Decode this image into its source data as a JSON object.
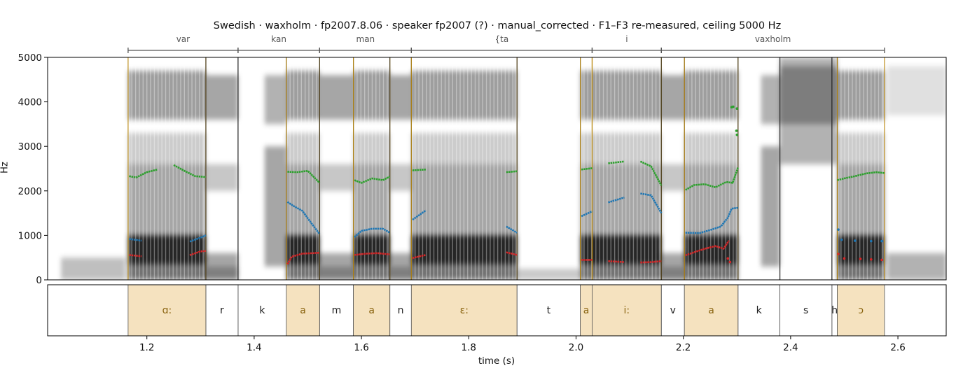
{
  "chart_data": {
    "type": "spectrogram",
    "title": "Swedish · waxholm · fp2007.8.06 · speaker fp2007 (?) · manual_corrected · F1–F3 re-measured, ceiling 5000 Hz",
    "xlabel": "time (s)",
    "ylabel": "Hz",
    "xlim": [
      1.015,
      2.69
    ],
    "ylim": [
      0,
      5000
    ],
    "xticks": [
      "1.2",
      "1.4",
      "1.6",
      "1.8",
      "2.0",
      "2.2",
      "2.4",
      "2.6"
    ],
    "yticks": [
      "0",
      "1000",
      "2000",
      "3000",
      "4000",
      "5000"
    ],
    "words": [
      {
        "label": "var",
        "start": 1.165,
        "end": 1.37
      },
      {
        "label": "kan",
        "start": 1.37,
        "end": 1.522
      },
      {
        "label": "man",
        "start": 1.522,
        "end": 1.693
      },
      {
        "label": "{ta",
        "start": 1.693,
        "end": 2.03
      },
      {
        "label": "i",
        "start": 2.03,
        "end": 2.159
      },
      {
        "label": "vaxholm",
        "start": 2.159,
        "end": 2.575
      }
    ],
    "segments": [
      {
        "label": "ɑ:",
        "start": 1.165,
        "end": 1.31,
        "vowel": true
      },
      {
        "label": "r",
        "start": 1.31,
        "end": 1.37,
        "vowel": false
      },
      {
        "label": "k",
        "start": 1.37,
        "end": 1.46,
        "vowel": false
      },
      {
        "label": "a",
        "start": 1.46,
        "end": 1.522,
        "vowel": true
      },
      {
        "label": "m",
        "start": 1.522,
        "end": 1.585,
        "vowel": false
      },
      {
        "label": "a",
        "start": 1.585,
        "end": 1.653,
        "vowel": true
      },
      {
        "label": "n",
        "start": 1.653,
        "end": 1.693,
        "vowel": false
      },
      {
        "label": "ɛ:",
        "start": 1.693,
        "end": 1.89,
        "vowel": true
      },
      {
        "label": "t",
        "start": 1.89,
        "end": 2.008,
        "vowel": false
      },
      {
        "label": "a",
        "start": 2.008,
        "end": 2.03,
        "vowel": true
      },
      {
        "label": "i:",
        "start": 2.03,
        "end": 2.159,
        "vowel": true
      },
      {
        "label": "v",
        "start": 2.159,
        "end": 2.202,
        "vowel": false
      },
      {
        "label": "a",
        "start": 2.202,
        "end": 2.302,
        "vowel": true
      },
      {
        "label": "k",
        "start": 2.302,
        "end": 2.38,
        "vowel": false
      },
      {
        "label": "s",
        "start": 2.38,
        "end": 2.477,
        "vowel": false
      },
      {
        "label": "h",
        "start": 2.477,
        "end": 2.487,
        "vowel": false
      },
      {
        "label": "ɔ",
        "start": 2.487,
        "end": 2.575,
        "vowel": true
      }
    ],
    "formants": [
      {
        "name": "F1",
        "color": "#d62728",
        "points": [
          [
            1.167,
            560
          ],
          [
            1.19,
            530
          ],
          [
            1.22,
            540
          ],
          [
            1.25,
            535
          ],
          [
            1.28,
            555
          ],
          [
            1.3,
            640
          ],
          [
            1.31,
            650
          ],
          [
            1.462,
            350
          ],
          [
            1.47,
            520
          ],
          [
            1.49,
            590
          ],
          [
            1.51,
            600
          ],
          [
            1.522,
            610
          ],
          [
            1.587,
            560
          ],
          [
            1.61,
            590
          ],
          [
            1.63,
            600
          ],
          [
            1.653,
            570
          ],
          [
            1.695,
            490
          ],
          [
            1.72,
            560
          ],
          [
            1.75,
            600
          ],
          [
            1.78,
            620
          ],
          [
            1.81,
            640
          ],
          [
            1.84,
            650
          ],
          [
            1.87,
            620
          ],
          [
            1.89,
            560
          ],
          [
            2.01,
            450
          ],
          [
            2.03,
            450
          ],
          [
            2.06,
            420
          ],
          [
            2.09,
            400
          ],
          [
            2.12,
            390
          ],
          [
            2.14,
            400
          ],
          [
            2.159,
            420
          ],
          [
            2.204,
            550
          ],
          [
            2.22,
            620
          ],
          [
            2.24,
            700
          ],
          [
            2.26,
            760
          ],
          [
            2.275,
            700
          ],
          [
            2.285,
            880
          ]
        ]
      },
      {
        "name": "F2",
        "color": "#1f77b4",
        "points": [
          [
            1.167,
            920
          ],
          [
            1.19,
            880
          ],
          [
            1.22,
            830
          ],
          [
            1.25,
            820
          ],
          [
            1.28,
            860
          ],
          [
            1.3,
            950
          ],
          [
            1.31,
            1000
          ],
          [
            1.462,
            1750
          ],
          [
            1.475,
            1650
          ],
          [
            1.49,
            1550
          ],
          [
            1.505,
            1300
          ],
          [
            1.522,
            1030
          ],
          [
            1.587,
            960
          ],
          [
            1.6,
            1100
          ],
          [
            1.62,
            1150
          ],
          [
            1.64,
            1150
          ],
          [
            1.653,
            1060
          ],
          [
            1.695,
            1350
          ],
          [
            1.72,
            1560
          ],
          [
            1.75,
            1700
          ],
          [
            1.78,
            1740
          ],
          [
            1.81,
            1720
          ],
          [
            1.84,
            1620
          ],
          [
            1.87,
            1200
          ],
          [
            1.89,
            1060
          ],
          [
            2.01,
            1430
          ],
          [
            2.03,
            1540
          ],
          [
            2.06,
            1740
          ],
          [
            2.09,
            1850
          ],
          [
            2.12,
            1940
          ],
          [
            2.14,
            1900
          ],
          [
            2.159,
            1500
          ],
          [
            2.204,
            1060
          ],
          [
            2.23,
            1050
          ],
          [
            2.25,
            1120
          ],
          [
            2.27,
            1200
          ],
          [
            2.283,
            1400
          ],
          [
            2.29,
            1600
          ],
          [
            2.302,
            1620
          ]
        ]
      },
      {
        "name": "F3",
        "color": "#2ca02c",
        "points": [
          [
            1.167,
            2330
          ],
          [
            1.18,
            2300
          ],
          [
            1.2,
            2420
          ],
          [
            1.22,
            2480
          ],
          [
            1.25,
            2580
          ],
          [
            1.27,
            2450
          ],
          [
            1.29,
            2330
          ],
          [
            1.31,
            2310
          ],
          [
            1.462,
            2430
          ],
          [
            1.48,
            2420
          ],
          [
            1.5,
            2450
          ],
          [
            1.522,
            2180
          ],
          [
            1.587,
            2240
          ],
          [
            1.6,
            2180
          ],
          [
            1.62,
            2280
          ],
          [
            1.64,
            2240
          ],
          [
            1.653,
            2320
          ],
          [
            1.695,
            2460
          ],
          [
            1.72,
            2480
          ],
          [
            1.75,
            2420
          ],
          [
            1.78,
            2400
          ],
          [
            1.81,
            2320
          ],
          [
            1.84,
            2330
          ],
          [
            1.87,
            2420
          ],
          [
            1.89,
            2440
          ],
          [
            2.01,
            2480
          ],
          [
            2.03,
            2510
          ],
          [
            2.06,
            2620
          ],
          [
            2.09,
            2660
          ],
          [
            2.12,
            2660
          ],
          [
            2.14,
            2550
          ],
          [
            2.159,
            2120
          ],
          [
            2.204,
            2020
          ],
          [
            2.22,
            2130
          ],
          [
            2.24,
            2150
          ],
          [
            2.26,
            2080
          ],
          [
            2.28,
            2200
          ],
          [
            2.292,
            2180
          ],
          [
            2.302,
            2530
          ],
          [
            2.487,
            2240
          ],
          [
            2.5,
            2280
          ],
          [
            2.52,
            2330
          ],
          [
            2.54,
            2390
          ],
          [
            2.56,
            2420
          ],
          [
            2.575,
            2400
          ]
        ]
      }
    ],
    "formant_stray_points": [
      {
        "name": "F3",
        "points": [
          [
            2.29,
            3880
          ],
          [
            2.293,
            3890
          ],
          [
            2.3,
            3850
          ],
          [
            2.299,
            3350
          ],
          [
            2.3,
            3260
          ]
        ]
      },
      {
        "name": "F2",
        "points": [
          [
            2.489,
            1130
          ],
          [
            2.495,
            900
          ],
          [
            2.52,
            880
          ],
          [
            2.55,
            870
          ],
          [
            2.57,
            870
          ]
        ]
      },
      {
        "name": "F1",
        "points": [
          [
            2.489,
            580
          ],
          [
            2.5,
            480
          ],
          [
            2.53,
            470
          ],
          [
            2.55,
            460
          ],
          [
            2.57,
            450
          ],
          [
            2.283,
            480
          ],
          [
            2.287,
            400
          ]
        ]
      }
    ],
    "grid": false,
    "legend": "none"
  }
}
